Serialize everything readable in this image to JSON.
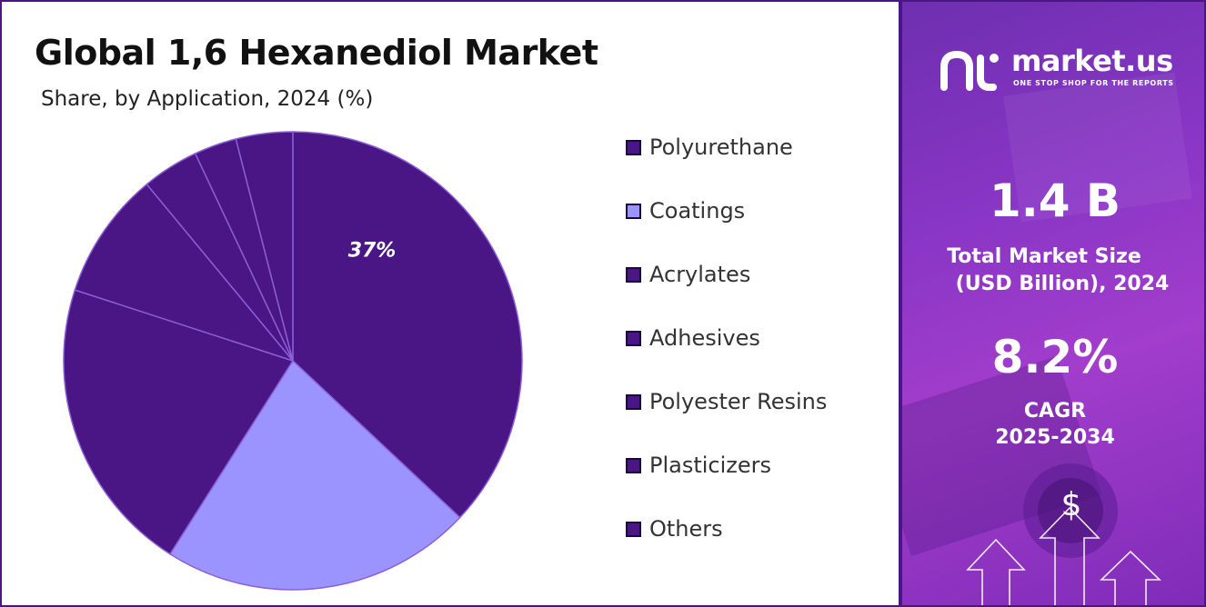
{
  "header": {
    "title": "Global 1,6 Hexanediol Market",
    "subtitle": "Share, by Application, 2024 (%)"
  },
  "brand": {
    "name": "market.us",
    "tagline": "ONE STOP SHOP FOR THE REPORTS",
    "logo_icon": "market-us-logo-icon"
  },
  "stats": {
    "market_size_value": "1.4 B",
    "market_size_label_line1": "Total Market Size",
    "market_size_label_line2": "(USD Billion), 2024",
    "cagr_value": "8.2%",
    "cagr_label_line1": "CAGR",
    "cagr_label_line2": "2025-2034"
  },
  "decor": {
    "dollar_symbol": "$"
  },
  "colors": {
    "primary": "#4a1585",
    "coatings": "#9b94ff",
    "slice_border": "#8a5fd6",
    "panel_purple": "#8a36c6"
  },
  "chart_data": {
    "type": "pie",
    "title": "Global 1,6 Hexanediol Market",
    "subtitle": "Share, by Application, 2024 (%)",
    "legend_position": "right",
    "slices": [
      {
        "label": "Polyurethane",
        "value": 37,
        "data_label": "37%",
        "color": "#4a1585"
      },
      {
        "label": "Coatings",
        "value": 22,
        "data_label": "",
        "color": "#9b94ff"
      },
      {
        "label": "Acrylates",
        "value": 21,
        "data_label": "",
        "color": "#4a1585"
      },
      {
        "label": "Adhesives",
        "value": 9,
        "data_label": "",
        "color": "#4a1585"
      },
      {
        "label": "Polyester Resins",
        "value": 4,
        "data_label": "",
        "color": "#4a1585"
      },
      {
        "label": "Plasticizers",
        "value": 3,
        "data_label": "",
        "color": "#4a1585"
      },
      {
        "label": "Others",
        "value": 4,
        "data_label": "",
        "color": "#4a1585"
      }
    ]
  }
}
